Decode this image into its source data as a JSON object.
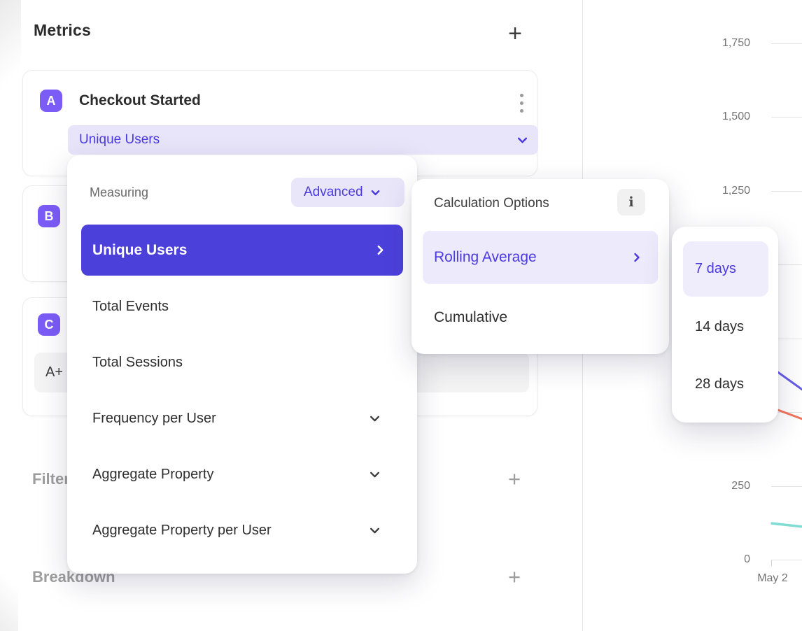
{
  "metrics_panel": {
    "title": "Metrics",
    "add_icon": "+",
    "metric_a": {
      "badge": "A",
      "name": "Checkout Started",
      "measurement": "Unique Users"
    },
    "metric_b": {
      "badge": "B"
    },
    "metric_c": {
      "badge": "C",
      "formula_visible": "A+"
    },
    "filters": {
      "label": "Filters",
      "add_icon": "+"
    },
    "breakdown": {
      "label": "Breakdown",
      "add_icon": "+"
    }
  },
  "measuring_menu": {
    "label": "Measuring",
    "mode_selector": "Advanced",
    "selected_item": "Unique Users",
    "items": [
      "Total Events",
      "Total Sessions",
      "Frequency per User",
      "Aggregate Property",
      "Aggregate Property per User"
    ]
  },
  "calculation_menu": {
    "title": "Calculation Options",
    "info_icon": "i",
    "selected_item": "Rolling Average",
    "other_item": "Cumulative"
  },
  "rolling_window_menu": {
    "selected_item": "7 days",
    "items": [
      "7 days",
      "14 days",
      "28 days"
    ]
  },
  "chart_data": {
    "type": "line",
    "x_tick_labels_visible": [
      "May 2"
    ],
    "y_ticks_visible": [
      {
        "value": 1750,
        "label": "1,750"
      },
      {
        "value": 1500,
        "label": "1,500"
      },
      {
        "value": 1250,
        "label": "1,250"
      },
      {
        "value": 250,
        "label": "250"
      },
      {
        "value": 0,
        "label": "0"
      }
    ],
    "y_gridline_values": [
      1750,
      1500,
      1250,
      1000,
      750,
      500,
      250,
      0
    ],
    "ylim": [
      0,
      1850
    ],
    "grid": true,
    "series": [
      {
        "name": "purple",
        "color": "#675CE8",
        "stroke_width": 3,
        "visible_values": [
          650,
          577
        ]
      },
      {
        "name": "orange",
        "color": "#F0745C",
        "stroke_width": 3,
        "visible_values": [
          515,
          477
        ]
      },
      {
        "name": "teal",
        "color": "#7FDCD3",
        "stroke_width": 3.5,
        "visible_values": [
          123,
          112
        ]
      }
    ]
  },
  "colors": {
    "accent_purple": "#4C40DB",
    "badge_purple": "#7B5CF7",
    "purple_text": "#4A3AE0",
    "light_purple_bg": "#E8E5FA",
    "lighter_purple_bg": "#EDEAFC",
    "series_purple": "#675CE8",
    "series_orange": "#F0745C",
    "series_teal": "#7FDCD3",
    "gridline": "#E3E3E3"
  }
}
